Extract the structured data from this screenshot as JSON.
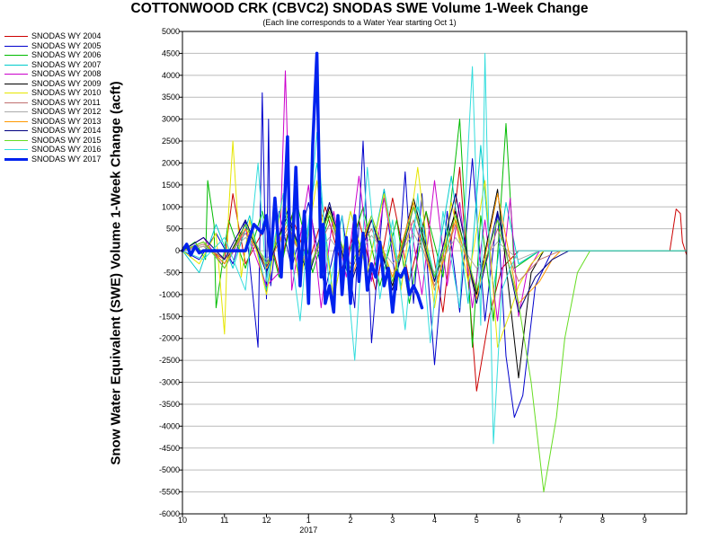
{
  "chart_data": {
    "type": "line",
    "title": "COTTONWOOD CRK (CBVC2) SNODAS SWE Volume 1-Week Change",
    "subtitle": "(Each line corresponds to a Water Year starting Oct 1)",
    "ylabel": "Snow Water Equivalent (SWE) Volume 1-Week Change (acft)",
    "xlabel": "",
    "ylim": [
      -6000,
      5000
    ],
    "yticks": [
      5000,
      4500,
      4000,
      3500,
      3000,
      2500,
      2000,
      1500,
      1000,
      500,
      0,
      -500,
      -1000,
      -1500,
      -2000,
      -2500,
      -3000,
      -3500,
      -4000,
      -4500,
      -5000,
      -5500,
      -6000
    ],
    "xlim": [
      0,
      12
    ],
    "xticks": [
      {
        "pos": 0,
        "label": "10"
      },
      {
        "pos": 1,
        "label": "11"
      },
      {
        "pos": 2,
        "label": "12"
      },
      {
        "pos": 3,
        "label": "1"
      },
      {
        "pos": 4,
        "label": "2"
      },
      {
        "pos": 5,
        "label": "3"
      },
      {
        "pos": 6,
        "label": "4"
      },
      {
        "pos": 7,
        "label": "5"
      },
      {
        "pos": 8,
        "label": "6"
      },
      {
        "pos": 9,
        "label": "7"
      },
      {
        "pos": 10,
        "label": "8"
      },
      {
        "pos": 11,
        "label": "9"
      }
    ],
    "year_label": "2017",
    "year_label_pos": 3,
    "grid": "horizontal",
    "legend_position": "left",
    "series": [
      {
        "name": "SNODAS WY 2004",
        "color": "#cc0000",
        "width": 1,
        "x": [
          0,
          0.5,
          1.0,
          1.2,
          1.5,
          2.0,
          2.3,
          2.6,
          3.0,
          3.4,
          3.8,
          4.2,
          4.6,
          5.0,
          5.4,
          5.8,
          6.2,
          6.6,
          7.0,
          7.3,
          7.6,
          8.0,
          8.5,
          9.0,
          10.0,
          11.0,
          11.6,
          11.75,
          11.85,
          11.9,
          12.0
        ],
        "y": [
          0,
          100,
          -200,
          1300,
          -300,
          600,
          -500,
          800,
          -300,
          1000,
          -400,
          700,
          -900,
          1200,
          -700,
          900,
          -1400,
          1900,
          -3200,
          -1500,
          -400,
          0,
          0,
          0,
          0,
          0,
          0,
          950,
          850,
          200,
          -100
        ]
      },
      {
        "name": "SNODAS WY 2005",
        "color": "#0000cc",
        "width": 1,
        "x": [
          0,
          0.4,
          0.8,
          1.2,
          1.5,
          1.8,
          1.9,
          2.0,
          2.05,
          2.1,
          2.3,
          2.6,
          3.0,
          3.4,
          3.8,
          4.1,
          4.3,
          4.5,
          4.8,
          5.1,
          5.3,
          5.5,
          5.7,
          6.0,
          6.3,
          6.6,
          6.9,
          7.2,
          7.5,
          7.7,
          7.9,
          8.1,
          8.4,
          8.8,
          12.0
        ],
        "y": [
          0,
          -200,
          400,
          -300,
          700,
          -2200,
          3600,
          -1100,
          3000,
          -800,
          900,
          -400,
          1100,
          -900,
          800,
          -1300,
          2500,
          -2100,
          1400,
          -900,
          1800,
          -1200,
          1300,
          -2600,
          900,
          -1400,
          2100,
          -1600,
          900,
          -2400,
          -3800,
          -3300,
          -800,
          0,
          0
        ]
      },
      {
        "name": "SNODAS WY 2006",
        "color": "#00bb00",
        "width": 1,
        "x": [
          0,
          0.3,
          0.55,
          0.6,
          0.75,
          0.8,
          1.1,
          1.5,
          1.9,
          2.3,
          2.7,
          3.1,
          3.5,
          3.9,
          4.3,
          4.7,
          5.1,
          5.4,
          5.8,
          6.2,
          6.6,
          6.9,
          7.1,
          7.4,
          7.7,
          7.9,
          8.5,
          9.0,
          12.0
        ],
        "y": [
          0,
          200,
          -200,
          1600,
          600,
          -1300,
          700,
          -400,
          900,
          -600,
          1200,
          -500,
          800,
          -300,
          1000,
          -800,
          700,
          -1200,
          900,
          -600,
          3000,
          -2200,
          800,
          -1600,
          2900,
          -400,
          0,
          0,
          0
        ]
      },
      {
        "name": "SNODAS WY 2007",
        "color": "#00cccc",
        "width": 1,
        "x": [
          0,
          0.4,
          0.8,
          1.2,
          1.6,
          2.0,
          2.4,
          2.8,
          3.2,
          3.6,
          4.0,
          4.4,
          4.8,
          5.2,
          5.6,
          6.0,
          6.4,
          6.8,
          7.1,
          7.4,
          7.7,
          8.0,
          8.5,
          12.0
        ],
        "y": [
          0,
          -500,
          600,
          -400,
          800,
          -900,
          1300,
          -700,
          2000,
          -1100,
          900,
          -500,
          1400,
          -800,
          1000,
          -600,
          1700,
          -1200,
          2400,
          -900,
          1100,
          -300,
          0,
          0
        ]
      },
      {
        "name": "SNODAS WY 2008",
        "color": "#cc00cc",
        "width": 1,
        "x": [
          0,
          0.5,
          1.0,
          1.5,
          2.0,
          2.3,
          2.45,
          2.6,
          3.0,
          3.3,
          3.6,
          3.9,
          4.2,
          4.5,
          4.8,
          5.1,
          5.4,
          5.7,
          6.0,
          6.3,
          6.6,
          6.9,
          7.2,
          7.5,
          7.8,
          8.0,
          8.2,
          8.5,
          12.0
        ],
        "y": [
          0,
          300,
          -400,
          500,
          -800,
          -500,
          4100,
          -900,
          1500,
          -1300,
          900,
          -600,
          1700,
          -700,
          1200,
          -400,
          800,
          -1000,
          1600,
          -800,
          1100,
          -1300,
          700,
          -1600,
          1200,
          -1500,
          -500,
          0,
          0
        ]
      },
      {
        "name": "SNODAS WY 2009",
        "color": "#000000",
        "width": 1,
        "x": [
          0,
          0.5,
          1.0,
          1.5,
          2.0,
          2.5,
          3.0,
          3.5,
          4.0,
          4.5,
          5.0,
          5.5,
          6.0,
          6.5,
          7.0,
          7.5,
          8.0,
          8.3,
          8.6,
          9.0,
          12.0
        ],
        "y": [
          0,
          200,
          -300,
          600,
          -400,
          800,
          -600,
          1000,
          -500,
          700,
          -800,
          1200,
          -700,
          900,
          -1000,
          1400,
          -2900,
          -500,
          0,
          0,
          0
        ]
      },
      {
        "name": "SNODAS WY 2010",
        "color": "#e6e600",
        "width": 1,
        "x": [
          0,
          0.4,
          0.8,
          1.0,
          1.1,
          1.2,
          1.4,
          1.6,
          2.0,
          2.4,
          2.8,
          3.2,
          3.6,
          4.0,
          4.4,
          4.8,
          5.2,
          5.6,
          6.0,
          6.4,
          6.8,
          7.2,
          7.5,
          7.8,
          8.0,
          8.3,
          8.6,
          12.0
        ],
        "y": [
          0,
          -300,
          400,
          -1900,
          900,
          2500,
          -600,
          700,
          -1000,
          1300,
          -800,
          1600,
          -1100,
          900,
          -500,
          1300,
          -900,
          1900,
          -1300,
          1100,
          -700,
          1600,
          -2200,
          -1400,
          -800,
          -300,
          0,
          0
        ]
      },
      {
        "name": "SNODAS WY 2011",
        "color": "#c07070",
        "width": 1,
        "x": [
          0,
          0.5,
          1.0,
          1.5,
          2.0,
          2.5,
          3.0,
          3.5,
          4.0,
          4.5,
          5.0,
          5.5,
          6.0,
          6.5,
          7.0,
          7.5,
          8.0,
          8.5,
          9.0,
          12.0
        ],
        "y": [
          0,
          150,
          -200,
          400,
          -300,
          500,
          -400,
          600,
          -300,
          500,
          -600,
          700,
          -800,
          600,
          -900,
          500,
          -700,
          -200,
          0,
          0
        ]
      },
      {
        "name": "SNODAS WY 2012",
        "color": "#aaaaaa",
        "width": 1,
        "x": [
          0,
          0.5,
          1.0,
          1.5,
          2.0,
          2.5,
          3.0,
          3.5,
          4.0,
          4.5,
          5.0,
          5.5,
          6.0,
          6.5,
          7.0,
          7.5,
          8.0,
          8.5,
          12.0
        ],
        "y": [
          0,
          100,
          -150,
          300,
          -200,
          400,
          -300,
          300,
          -400,
          350,
          -300,
          400,
          -500,
          300,
          -400,
          200,
          -200,
          0,
          0
        ]
      },
      {
        "name": "SNODAS WY 2013",
        "color": "#ff9900",
        "width": 1,
        "x": [
          0,
          0.5,
          1.0,
          1.5,
          2.0,
          2.5,
          3.0,
          3.5,
          4.0,
          4.5,
          5.0,
          5.5,
          6.0,
          6.5,
          7.0,
          7.5,
          8.0,
          8.5,
          8.8,
          9.0,
          12.0
        ],
        "y": [
          0,
          200,
          -300,
          500,
          -400,
          600,
          -500,
          900,
          -700,
          800,
          -600,
          1100,
          -900,
          700,
          -1100,
          1300,
          -1200,
          -700,
          -200,
          0,
          0
        ]
      },
      {
        "name": "SNODAS WY 2014",
        "color": "#000080",
        "width": 1,
        "x": [
          0,
          0.5,
          1.0,
          1.5,
          2.0,
          2.5,
          3.0,
          3.5,
          4.0,
          4.5,
          5.0,
          5.5,
          6.0,
          6.5,
          7.0,
          7.5,
          8.0,
          8.4,
          8.8,
          9.2,
          12.0
        ],
        "y": [
          0,
          300,
          -200,
          700,
          -500,
          900,
          -600,
          1100,
          -800,
          700,
          -900,
          1000,
          -700,
          1300,
          -1200,
          900,
          -1400,
          -600,
          -200,
          0,
          0
        ]
      },
      {
        "name": "SNODAS WY 2015",
        "color": "#66dd22",
        "width": 1,
        "x": [
          0,
          0.5,
          1.0,
          1.5,
          2.0,
          2.5,
          3.0,
          3.5,
          4.0,
          4.5,
          5.0,
          5.5,
          6.0,
          6.5,
          7.0,
          7.5,
          8.0,
          8.3,
          8.6,
          8.9,
          9.1,
          9.4,
          9.7,
          12.0
        ],
        "y": [
          0,
          200,
          -400,
          600,
          -300,
          700,
          -500,
          900,
          -400,
          800,
          -700,
          1000,
          -600,
          800,
          -900,
          700,
          -1200,
          -3000,
          -5500,
          -3800,
          -2000,
          -500,
          0,
          0
        ]
      },
      {
        "name": "SNODAS WY 2016",
        "color": "#33dddd",
        "width": 1,
        "x": [
          0,
          0.5,
          1.0,
          1.5,
          1.8,
          2.0,
          2.4,
          2.8,
          3.2,
          3.5,
          3.8,
          4.1,
          4.4,
          4.7,
          5.0,
          5.3,
          5.6,
          5.9,
          6.2,
          6.6,
          6.9,
          7.1,
          7.2,
          7.4,
          7.6,
          7.8,
          8.0,
          8.5,
          12.0
        ],
        "y": [
          0,
          -200,
          300,
          -900,
          2000,
          -700,
          1300,
          -1600,
          2700,
          -900,
          800,
          -2500,
          1900,
          -1100,
          700,
          -1800,
          1300,
          -2100,
          900,
          -1300,
          4200,
          -1700,
          4500,
          -4400,
          -900,
          -400,
          0,
          0,
          0
        ]
      },
      {
        "name": "SNODAS WY 2017",
        "color": "#0022ee",
        "width": 3.5,
        "x": [
          0,
          0.1,
          0.2,
          0.3,
          0.4,
          0.5,
          0.7,
          0.9,
          1.1,
          1.3,
          1.5,
          1.7,
          1.9,
          2.0,
          2.1,
          2.2,
          2.35,
          2.5,
          2.55,
          2.6,
          2.7,
          2.8,
          2.9,
          3.0,
          3.1,
          3.2,
          3.3,
          3.35,
          3.4,
          3.5,
          3.6,
          3.7,
          3.8,
          3.9,
          4.0,
          4.1,
          4.2,
          4.3,
          4.4,
          4.5,
          4.6,
          4.7,
          4.8,
          4.9,
          5.0,
          5.1,
          5.2,
          5.3,
          5.4,
          5.5,
          5.6,
          5.7
        ],
        "y": [
          0,
          150,
          -100,
          100,
          -50,
          0,
          0,
          0,
          0,
          0,
          0,
          600,
          400,
          800,
          -200,
          1200,
          -600,
          2600,
          300,
          -400,
          1900,
          -800,
          900,
          -1200,
          2400,
          4500,
          -600,
          600,
          -1200,
          -800,
          -1400,
          800,
          -1000,
          300,
          -1200,
          800,
          -700,
          400,
          -900,
          -300,
          -600,
          200,
          -800,
          -400,
          -1400,
          -500,
          -600,
          -400,
          -1000,
          -800,
          -1000,
          -1300
        ]
      }
    ]
  }
}
